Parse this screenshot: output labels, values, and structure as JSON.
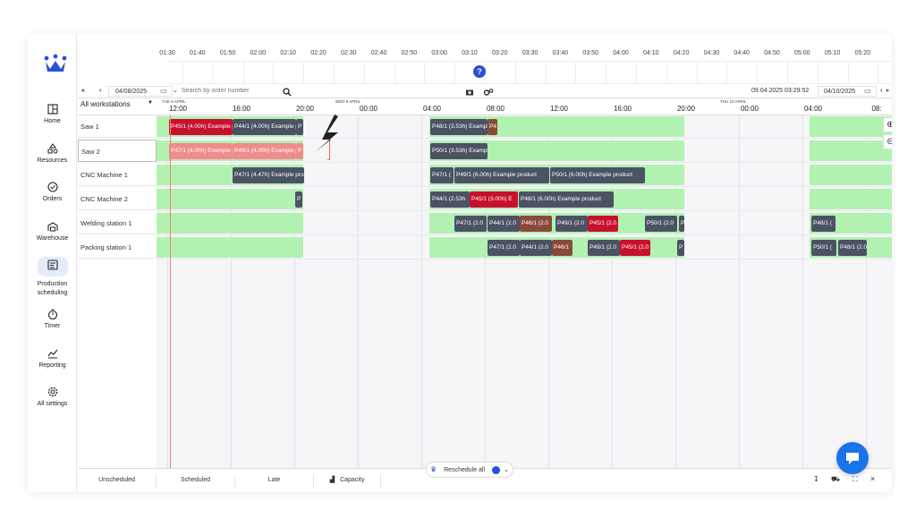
{
  "colors": {
    "accent": "#2b50d8",
    "available": "#b1f2b1",
    "task_dark": "#4b5263",
    "task_red": "#c8102e",
    "task_pink": "#f08c8c",
    "task_brown": "#8a4a3a",
    "now_line": "#f08070"
  },
  "sidebar": {
    "items": [
      {
        "label": "Home",
        "icon": "home-icon"
      },
      {
        "label": "Resources",
        "icon": "resources-icon"
      },
      {
        "label": "Orders",
        "icon": "orders-icon"
      },
      {
        "label": "Warehouse",
        "icon": "warehouse-icon"
      },
      {
        "label": "Production scheduling",
        "icon": "production-scheduling-icon"
      },
      {
        "label": "Timer",
        "icon": "timer-icon"
      },
      {
        "label": "Reporting",
        "icon": "reporting-icon"
      },
      {
        "label": "All settings",
        "icon": "settings-icon"
      }
    ]
  },
  "timeline": [
    "01:30",
    "01:40",
    "01:50",
    "02:00",
    "02:10",
    "02:20",
    "02:30",
    "02:40",
    "02:50",
    "03:00",
    "03:10",
    "03:20",
    "03:30",
    "03:40",
    "03:50",
    "04:00",
    "04:10",
    "04:20",
    "04:30",
    "04:40",
    "04:50",
    "05:00",
    "05:10",
    "05:20"
  ],
  "toolbar": {
    "from_date": "04/08/2025",
    "search_placeholder": "Search by order number",
    "current_time": "09.04.2025 03:29:52",
    "to_date": "04/10/2025"
  },
  "schedule": {
    "workstation_select": "All workstations",
    "days": [
      "TUE 8 APRIL",
      "WED 9 APRIL",
      "THU 10 APRIL"
    ],
    "hours": [
      "12:00",
      "16:00",
      "20:00",
      "00:00",
      "04:00",
      "08:00",
      "12:00",
      "16:00",
      "20:00",
      "00:00",
      "04:00",
      "08:"
    ],
    "rows": [
      {
        "name": "Saw 1",
        "tasks": [
          {
            "label": "P45/1 (4.00h) Example product",
            "color": "red"
          },
          {
            "label": "P44/1 (4.00h) Example product",
            "color": "dark"
          },
          {
            "label": "P",
            "color": "dark"
          },
          {
            "label": "P48/1 (3.53h) Example product",
            "color": "dark"
          },
          {
            "label": "P4",
            "color": "brown"
          }
        ]
      },
      {
        "name": "Saw 2",
        "tasks": [
          {
            "label": "P47/1 (4.00h) Example product",
            "color": "pink"
          },
          {
            "label": "P49/1 (4.00h) Example product",
            "color": "pink"
          },
          {
            "label": "P",
            "color": "pink"
          },
          {
            "label": "P50/1 (3.53h) Example product",
            "color": "dark"
          }
        ]
      },
      {
        "name": "CNC Machine 1",
        "tasks": [
          {
            "label": "P47/1 (4.47h) Example product",
            "color": "dark"
          },
          {
            "label": "P47/1 (",
            "color": "dark"
          },
          {
            "label": "P49/1 (6.00h) Example product",
            "color": "dark"
          },
          {
            "label": "P50/1 (6.00h) Example product",
            "color": "dark"
          }
        ]
      },
      {
        "name": "CNC Machine 2",
        "tasks": [
          {
            "label": "P",
            "color": "dark"
          },
          {
            "label": "P44/1 (2.53h",
            "color": "dark"
          },
          {
            "label": "P45/1 (3.00h) E",
            "color": "red"
          },
          {
            "label": "P48/1 (6.00h) Example product",
            "color": "dark"
          }
        ]
      },
      {
        "name": "Welding station 1",
        "tasks": [
          {
            "label": "P47/1 (2.0",
            "color": "dark"
          },
          {
            "label": "P44/1 (2.0",
            "color": "dark"
          },
          {
            "label": "P46/1 (2.0",
            "color": "brown"
          },
          {
            "label": "P49/1 (2.0",
            "color": "dark"
          },
          {
            "label": "P45/1 (2.0",
            "color": "red"
          },
          {
            "label": "P50/1 (2.0",
            "color": "dark"
          },
          {
            "label": "P",
            "color": "dark"
          },
          {
            "label": "P48/1 (",
            "color": "dark"
          }
        ]
      },
      {
        "name": "Packing station 1",
        "tasks": [
          {
            "label": "P47/1 (2.0",
            "color": "dark"
          },
          {
            "label": "P44/1 (2.0",
            "color": "dark"
          },
          {
            "label": "P46/1",
            "color": "brown"
          },
          {
            "label": "P49/1 (2.0",
            "color": "dark"
          },
          {
            "label": "P45/1 (2.0",
            "color": "red"
          },
          {
            "label": "P",
            "color": "dark"
          },
          {
            "label": "P50/1 (",
            "color": "dark"
          },
          {
            "label": "P48/1 (2.0",
            "color": "dark"
          }
        ]
      }
    ]
  },
  "bottom": {
    "tabs": [
      "Unscheduled",
      "Scheduled",
      "Late",
      "Capacity"
    ],
    "reschedule": "Reschedule all"
  }
}
